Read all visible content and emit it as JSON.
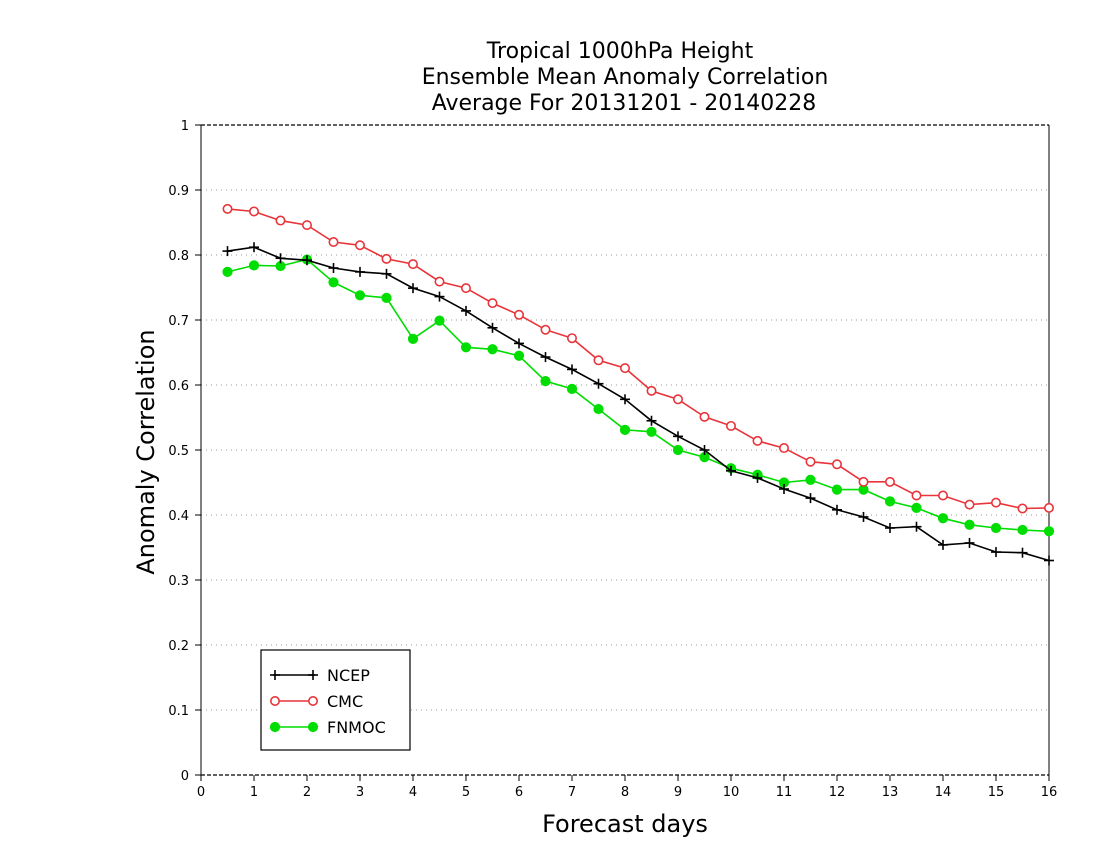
{
  "chart_data": {
    "type": "line",
    "title_lines": [
      "Tropical 1000hPa Height",
      "Ensemble Mean Anomaly Correlation",
      "Average For 20131201 - 20140228"
    ],
    "xlabel": "Forecast days",
    "ylabel": "Anomaly Correlation",
    "xlim": [
      0,
      16
    ],
    "ylim": [
      0,
      1
    ],
    "x_ticks": [
      "0",
      "1",
      "2",
      "3",
      "4",
      "5",
      "6",
      "7",
      "8",
      "9",
      "10",
      "11",
      "12",
      "13",
      "14",
      "15",
      "16"
    ],
    "y_ticks": [
      "0",
      "0.1",
      "0.2",
      "0.3",
      "0.4",
      "0.5",
      "0.6",
      "0.7",
      "0.8",
      "0.9",
      "1"
    ],
    "grid": "horizontal dotted",
    "legend_position": "bottom-left",
    "x": [
      0.5,
      1,
      1.5,
      2,
      2.5,
      3,
      3.5,
      4,
      4.5,
      5,
      5.5,
      6,
      6.5,
      7,
      7.5,
      8,
      8.5,
      9,
      9.5,
      10,
      10.5,
      11,
      11.5,
      12,
      12.5,
      13,
      13.5,
      14,
      14.5,
      15,
      15.5,
      16
    ],
    "series": [
      {
        "name": "NCEP",
        "color": "#000000",
        "marker": "plus",
        "values": [
          0.806,
          0.812,
          0.795,
          0.792,
          0.78,
          0.774,
          0.771,
          0.749,
          0.736,
          0.714,
          0.688,
          0.664,
          0.643,
          0.624,
          0.602,
          0.578,
          0.545,
          0.521,
          0.5,
          0.468,
          0.457,
          0.44,
          0.426,
          0.408,
          0.397,
          0.38,
          0.382,
          0.354,
          0.357,
          0.343,
          0.342,
          0.33
        ]
      },
      {
        "name": "CMC",
        "color": "#e8343a",
        "marker": "open-circle",
        "values": [
          0.871,
          0.867,
          0.853,
          0.846,
          0.82,
          0.815,
          0.794,
          0.786,
          0.759,
          0.749,
          0.726,
          0.708,
          0.685,
          0.672,
          0.638,
          0.626,
          0.591,
          0.578,
          0.551,
          0.537,
          0.514,
          0.503,
          0.482,
          0.478,
          0.451,
          0.451,
          0.43,
          0.43,
          0.416,
          0.419,
          0.41,
          0.411
        ]
      },
      {
        "name": "FNMOC",
        "color": "#00dd00",
        "marker": "filled-circle",
        "values": [
          0.774,
          0.784,
          0.783,
          0.793,
          0.758,
          0.738,
          0.734,
          0.671,
          0.699,
          0.658,
          0.655,
          0.645,
          0.606,
          0.594,
          0.563,
          0.531,
          0.528,
          0.5,
          0.489,
          0.472,
          0.462,
          0.45,
          0.454,
          0.439,
          0.439,
          0.421,
          0.411,
          0.395,
          0.385,
          0.38,
          0.377,
          0.375
        ]
      }
    ]
  }
}
